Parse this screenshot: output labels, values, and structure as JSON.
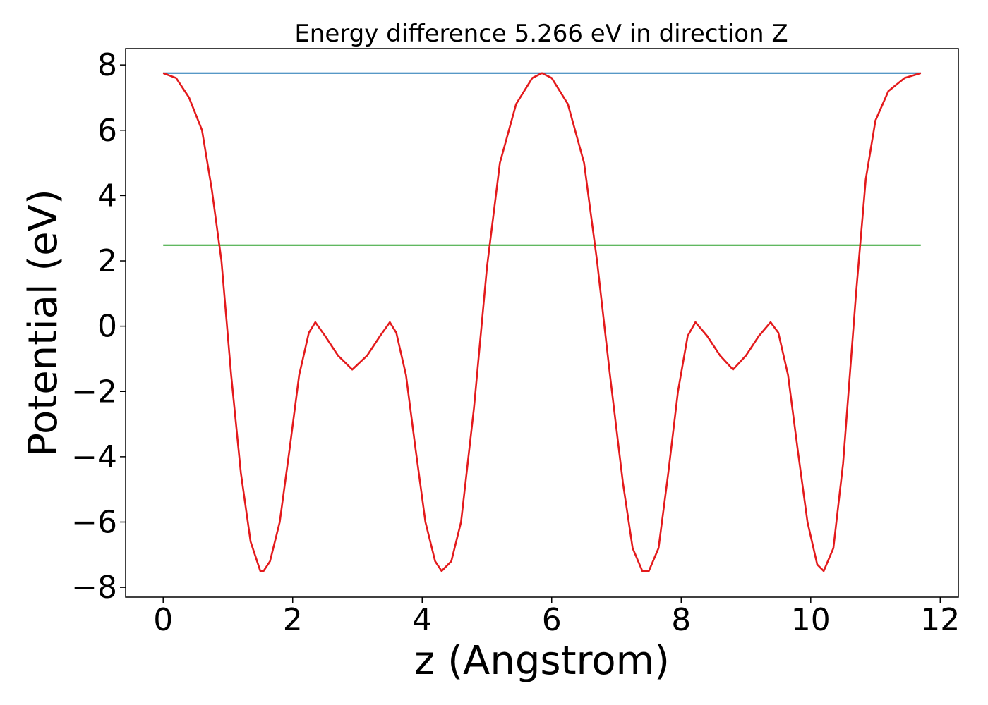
{
  "chart_data": {
    "type": "line",
    "title": "Energy difference 5.266 eV in direction Z",
    "xlabel": "z (Angstrom)",
    "ylabel": "Potential (eV)",
    "xlim": [
      -0.58,
      12.28
    ],
    "ylim": [
      -8.3,
      8.5
    ],
    "xticks": [
      0,
      2,
      4,
      6,
      8,
      10,
      12
    ],
    "xtick_labels": [
      "0",
      "2",
      "4",
      "6",
      "8",
      "10",
      "12"
    ],
    "yticks": [
      -8,
      -6,
      -4,
      -2,
      0,
      2,
      4,
      6,
      8
    ],
    "ytick_labels": [
      "−8",
      "−6",
      "−4",
      "−2",
      "0",
      "2",
      "4",
      "6",
      "8"
    ],
    "grid": false,
    "legend": "none",
    "series": [
      {
        "color": "#1f77b4",
        "style": "horizontal",
        "x": [
          0,
          11.7
        ],
        "y": [
          7.75,
          7.75
        ]
      },
      {
        "color": "#2ca02c",
        "style": "horizontal",
        "x": [
          0,
          11.7
        ],
        "y": [
          2.48,
          2.48
        ]
      },
      {
        "color": "#e31a1c",
        "style": "curve",
        "x": [
          0,
          0.2,
          0.4,
          0.6,
          0.75,
          0.9,
          1.05,
          1.2,
          1.35,
          1.5,
          1.55,
          1.65,
          1.8,
          1.95,
          2.1,
          2.25,
          2.35,
          2.5,
          2.7,
          2.92,
          3.15,
          3.35,
          3.5,
          3.6,
          3.75,
          3.9,
          4.05,
          4.2,
          4.3,
          4.45,
          4.6,
          4.8,
          5.0,
          5.2,
          5.45,
          5.7,
          5.85,
          6.0,
          6.25,
          6.5,
          6.7,
          6.9,
          7.1,
          7.25,
          7.4,
          7.5,
          7.65,
          7.8,
          7.95,
          8.1,
          8.22,
          8.4,
          8.6,
          8.8,
          9.0,
          9.2,
          9.38,
          9.5,
          9.65,
          9.8,
          9.95,
          10.1,
          10.2,
          10.35,
          10.5,
          10.7,
          10.85,
          11.0,
          11.2,
          11.45,
          11.7
        ],
        "y": [
          7.75,
          7.6,
          7.0,
          6.0,
          4.2,
          2.0,
          -1.5,
          -4.5,
          -6.6,
          -7.5,
          -7.5,
          -7.2,
          -6.0,
          -3.8,
          -1.5,
          -0.2,
          0.12,
          -0.3,
          -0.9,
          -1.33,
          -0.9,
          -0.3,
          0.12,
          -0.2,
          -1.5,
          -3.8,
          -6.0,
          -7.2,
          -7.5,
          -7.2,
          -6.0,
          -2.5,
          1.8,
          5.0,
          6.8,
          7.6,
          7.75,
          7.6,
          6.8,
          5.0,
          2.0,
          -1.5,
          -4.8,
          -6.8,
          -7.5,
          -7.5,
          -6.8,
          -4.5,
          -2.0,
          -0.3,
          0.12,
          -0.3,
          -0.9,
          -1.33,
          -0.9,
          -0.3,
          0.12,
          -0.2,
          -1.5,
          -3.8,
          -6.0,
          -7.3,
          -7.5,
          -6.8,
          -4.2,
          1.0,
          4.5,
          6.3,
          7.2,
          7.6,
          7.75
        ]
      }
    ]
  }
}
